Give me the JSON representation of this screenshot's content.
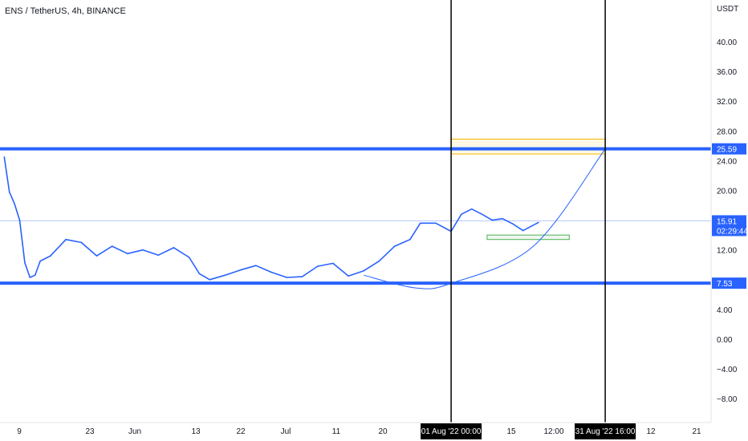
{
  "header": {
    "symbol": "ENS",
    "quote": "TetherUS",
    "interval": "4h",
    "exchange": "BINANCE",
    "title": "ENS / TetherUS, 4h, BINANCE"
  },
  "price_axis": {
    "currency": "USDT",
    "ticks": [
      "40.00",
      "36.00",
      "32.00",
      "28.00",
      "24.00",
      "20.00",
      "12.00",
      "4.00",
      "0.00",
      "−4.00",
      "−8.00"
    ]
  },
  "time_axis": {
    "ticks": [
      "9",
      "23",
      "Jun",
      "13",
      "22",
      "Jul",
      "11",
      "20",
      "15",
      "12:00",
      "12",
      "21"
    ],
    "highlighted": [
      "01 Aug '22  00:00",
      "31 Aug '22  16:00"
    ]
  },
  "price_labels": {
    "resistance": "25.59",
    "last_price": "15.91",
    "countdown": "02:29:44",
    "support": "7.53"
  },
  "colors": {
    "series": "#2962ff",
    "level": "#2962ff",
    "vline": "#000000",
    "zone_border": "#f5b400",
    "zone_fill": "#fff3d0",
    "green_box": "#4caf50",
    "axis_text": "#131722",
    "badge_text": "#ffffff"
  },
  "chart_data": {
    "type": "line",
    "title": "ENS / TetherUS, 4h, BINANCE",
    "xlabel": "",
    "ylabel": "USDT",
    "ylim": [
      -10.6,
      44.3
    ],
    "x_range": [
      "2022-05-06",
      "2022-09-22"
    ],
    "grid": false,
    "series": [
      {
        "name": "",
        "x": [
          "2022-05-06",
          "2022-05-07",
          "2022-05-08",
          "2022-05-09",
          "2022-05-10",
          "2022-05-11",
          "2022-05-12",
          "2022-05-13",
          "2022-05-15",
          "2022-05-18",
          "2022-05-21",
          "2022-05-24",
          "2022-05-27",
          "2022-05-30",
          "2022-06-02",
          "2022-06-05",
          "2022-06-08",
          "2022-06-11",
          "2022-06-13",
          "2022-06-15",
          "2022-06-18",
          "2022-06-21",
          "2022-06-24",
          "2022-06-27",
          "2022-06-30",
          "2022-07-03",
          "2022-07-06",
          "2022-07-09",
          "2022-07-12",
          "2022-07-15",
          "2022-07-18",
          "2022-07-21",
          "2022-07-24",
          "2022-07-26",
          "2022-07-29",
          "2022-08-01",
          "2022-08-03",
          "2022-08-05",
          "2022-08-07",
          "2022-08-09",
          "2022-08-11",
          "2022-08-13",
          "2022-08-15",
          "2022-08-18"
        ],
        "values": [
          24.5,
          19.8,
          18.2,
          16.0,
          10.3,
          8.3,
          8.6,
          10.5,
          11.2,
          13.4,
          13.0,
          11.2,
          12.5,
          11.5,
          12.0,
          11.3,
          12.3,
          11.0,
          8.8,
          8.0,
          8.6,
          9.3,
          9.9,
          9.0,
          8.3,
          8.4,
          9.8,
          10.2,
          8.5,
          9.2,
          10.5,
          12.5,
          13.4,
          15.6,
          15.6,
          14.5,
          16.8,
          17.5,
          16.8,
          16.0,
          16.2,
          15.5,
          14.6,
          15.7
        ]
      }
    ],
    "horizontal_levels": [
      25.59,
      7.53
    ],
    "last_price_line": 15.91,
    "vertical_markers": [
      "2022-08-01",
      "2022-08-31"
    ],
    "annotations": [
      {
        "type": "rectangle",
        "x": [
          "2022-08-01",
          "2022-08-31"
        ],
        "y": [
          24.9,
          26.9
        ]
      },
      {
        "type": "rectangle",
        "x": [
          "2022-08-08",
          "2022-08-24"
        ],
        "y": [
          13.4,
          14.0
        ]
      },
      {
        "type": "curve",
        "points": [
          [
            "2022-07-15",
            8.6
          ],
          [
            "2022-07-25",
            6.9
          ],
          [
            "2022-08-01",
            7.5
          ],
          [
            "2022-08-17",
            12.5
          ],
          [
            "2022-08-31",
            25.59
          ]
        ]
      }
    ]
  }
}
